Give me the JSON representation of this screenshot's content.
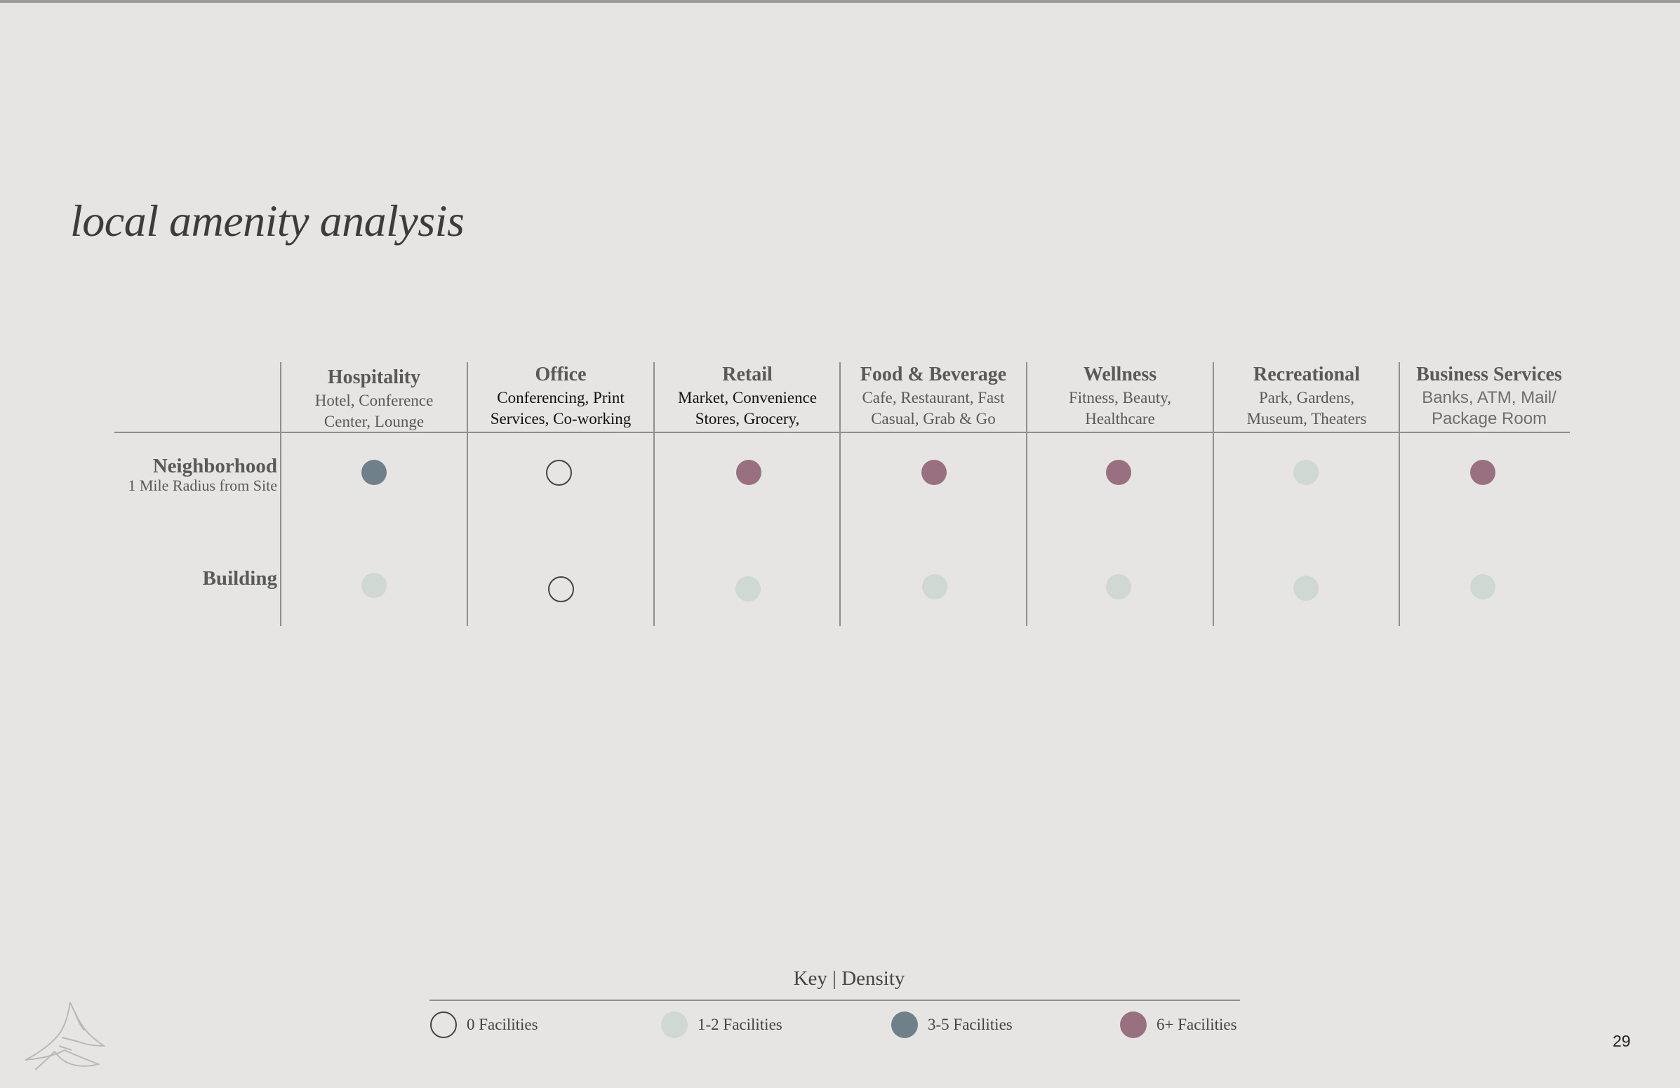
{
  "title": "local amenity analysis",
  "columns": [
    {
      "name": "Hospitality",
      "line1": "Hotel, Conference",
      "line2": "Center, Lounge"
    },
    {
      "name": "Office",
      "line1": "Conferencing, Print",
      "line2": "Services, Co-working"
    },
    {
      "name": "Retail",
      "line1": "Market, Convenience",
      "line2": "Stores, Grocery,"
    },
    {
      "name": "Food & Beverage",
      "line1": "Cafe, Restaurant, Fast",
      "line2": "Casual, Grab & Go"
    },
    {
      "name": "Wellness",
      "line1": "Fitness, Beauty,",
      "line2": "Healthcare"
    },
    {
      "name": "Recreational",
      "line1": "Park, Gardens,",
      "line2": "Museum, Theaters"
    },
    {
      "name": "Business Services",
      "line1": "Banks, ATM, Mail/",
      "line2": "Package Room"
    }
  ],
  "rows": [
    {
      "name": "Neighborhood",
      "sub": "1 Mile Radius from Site",
      "levels": [
        "3-5 Facilities",
        "0 Facilities",
        "6+ Facilities",
        "6+ Facilities",
        "6+ Facilities",
        "1-2 Facilities",
        "6+ Facilities"
      ]
    },
    {
      "name": "Building",
      "sub": "",
      "levels": [
        "1-2 Facilities",
        "0 Facilities",
        "1-2 Facilities",
        "1-2 Facilities",
        "1-2 Facilities",
        "1-2 Facilities",
        "1-2 Facilities"
      ]
    }
  ],
  "key": {
    "title": "Key | Density",
    "items": [
      {
        "label": "0 Facilities",
        "color": "none"
      },
      {
        "label": "1-2 Facilities",
        "color": "#cfd8d3"
      },
      {
        "label": "3-5 Facilities",
        "color": "#6f808b"
      },
      {
        "label": "6+ Facilities",
        "color": "#987080"
      }
    ]
  },
  "page_number": "29",
  "logo": "swallow-bird-icon"
}
